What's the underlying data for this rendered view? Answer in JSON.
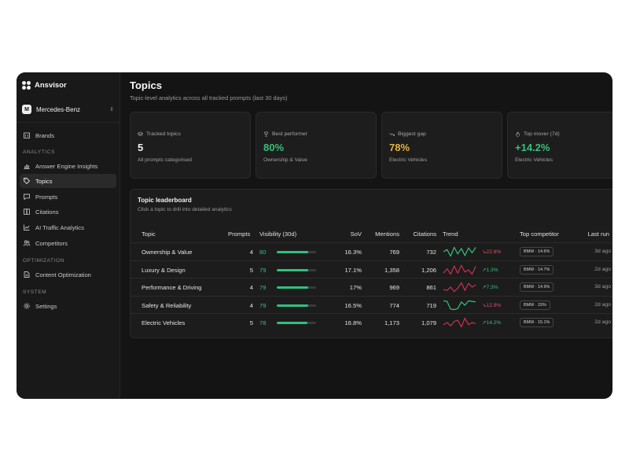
{
  "app": {
    "name": "Ansvisor"
  },
  "account": {
    "initial": "M",
    "name": "Mercedes-Benz"
  },
  "sidebar": {
    "top_items": [
      {
        "label": "Brands",
        "icon": "building-icon"
      }
    ],
    "sections": [
      {
        "label": "ANALYTICS",
        "items": [
          {
            "label": "Answer Engine Insights",
            "icon": "chart-icon",
            "active": false
          },
          {
            "label": "Topics",
            "icon": "tag-icon",
            "active": true
          },
          {
            "label": "Prompts",
            "icon": "message-icon",
            "active": false
          },
          {
            "label": "Citations",
            "icon": "book-icon",
            "active": false
          },
          {
            "label": "AI Traffic Analytics",
            "icon": "line-chart-icon",
            "active": false
          },
          {
            "label": "Competitors",
            "icon": "users-icon",
            "active": false
          }
        ]
      },
      {
        "label": "OPTIMIZATION",
        "items": [
          {
            "label": "Content Optimization",
            "icon": "document-icon",
            "active": false
          }
        ]
      },
      {
        "label": "SYSTEM",
        "items": [
          {
            "label": "Settings",
            "icon": "gear-icon",
            "active": false
          }
        ]
      }
    ]
  },
  "page": {
    "title": "Topics",
    "subtitle": "Topic-level analytics across all tracked prompts (last 30 days)"
  },
  "stats": [
    {
      "label": "Tracked topics",
      "value": "5",
      "desc": "All prompts categorised",
      "icon": "layers-icon",
      "color": "#f2f2f2"
    },
    {
      "label": "Best performer",
      "value": "80%",
      "desc": "Ownership & Value",
      "icon": "trophy-icon",
      "color": "#35c07b"
    },
    {
      "label": "Biggest gap",
      "value": "78%",
      "desc": "Electric Vehicles",
      "icon": "trend-down-icon",
      "color": "#e3b341"
    },
    {
      "label": "Top mover (7d)",
      "value": "+14.2%",
      "desc": "Electric Vehicles",
      "icon": "flame-icon",
      "color": "#35c07b"
    }
  ],
  "leaderboard": {
    "title": "Topic leaderboard",
    "subtitle": "Click a topic to drill into detailed analytics",
    "columns": {
      "topic": "Topic",
      "prompts": "Prompts",
      "visibility": "Visibility (30d)",
      "sov": "SoV",
      "mentions": "Mentions",
      "citations": "Citations",
      "trend": "Trend",
      "competitor": "Top competitor",
      "last_run": "Last run"
    },
    "rows": [
      {
        "topic": "Ownership & Value",
        "prompts": "4",
        "visibility": "80",
        "visibility_pct": 80,
        "sov": "16.3%",
        "mentions": "769",
        "citations": "732",
        "trend_color": "#35c07b",
        "trend_points": [
          0.5,
          0.7,
          0.1,
          0.9,
          0.3,
          0.8,
          0.15,
          0.85,
          0.4,
          0.9
        ],
        "delta": "↘22.8%",
        "delta_color": "#e0506b",
        "competitor": "BMW · 14.6%",
        "last_run": "3d ago"
      },
      {
        "topic": "Luxury & Design",
        "prompts": "5",
        "visibility": "79",
        "visibility_pct": 79,
        "sov": "17.1%",
        "mentions": "1,358",
        "citations": "1,206",
        "trend_color": "#c8324f",
        "trend_points": [
          0.2,
          0.6,
          0.1,
          0.85,
          0.2,
          0.9,
          0.3,
          0.5,
          0.1,
          0.8
        ],
        "delta": "↗1.3%",
        "delta_color": "#35c07b",
        "competitor": "BMW · 14.7%",
        "last_run": "2d ago"
      },
      {
        "topic": "Performance & Driving",
        "prompts": "4",
        "visibility": "79",
        "visibility_pct": 79,
        "sov": "17%",
        "mentions": "969",
        "citations": "861",
        "trend_color": "#c8324f",
        "trend_points": [
          0.3,
          0.2,
          0.5,
          0.1,
          0.4,
          0.9,
          0.2,
          0.85,
          0.5,
          0.7
        ],
        "delta": "↗7.3%",
        "delta_color": "#35c07b",
        "competitor": "BMW · 14.9%",
        "last_run": "3d ago"
      },
      {
        "topic": "Safety & Reliability",
        "prompts": "4",
        "visibility": "79",
        "visibility_pct": 79,
        "sov": "16.5%",
        "mentions": "774",
        "citations": "719",
        "trend_color": "#35c07b",
        "trend_points": [
          0.9,
          0.85,
          0.15,
          0.1,
          0.2,
          0.8,
          0.5,
          0.9,
          0.85,
          0.8
        ],
        "delta": "↘12.9%",
        "delta_color": "#e0506b",
        "competitor": "BMW · 15%",
        "last_run": "2d ago"
      },
      {
        "topic": "Electric Vehicles",
        "prompts": "5",
        "visibility": "78",
        "visibility_pct": 78,
        "sov": "16.8%",
        "mentions": "1,173",
        "citations": "1,079",
        "trend_color": "#c8324f",
        "trend_points": [
          0.3,
          0.5,
          0.2,
          0.6,
          0.7,
          0.1,
          0.9,
          0.3,
          0.5,
          0.4
        ],
        "delta": "↗14.2%",
        "delta_color": "#35c07b",
        "competitor": "BMW · 15.1%",
        "last_run": "2d ago"
      }
    ]
  }
}
